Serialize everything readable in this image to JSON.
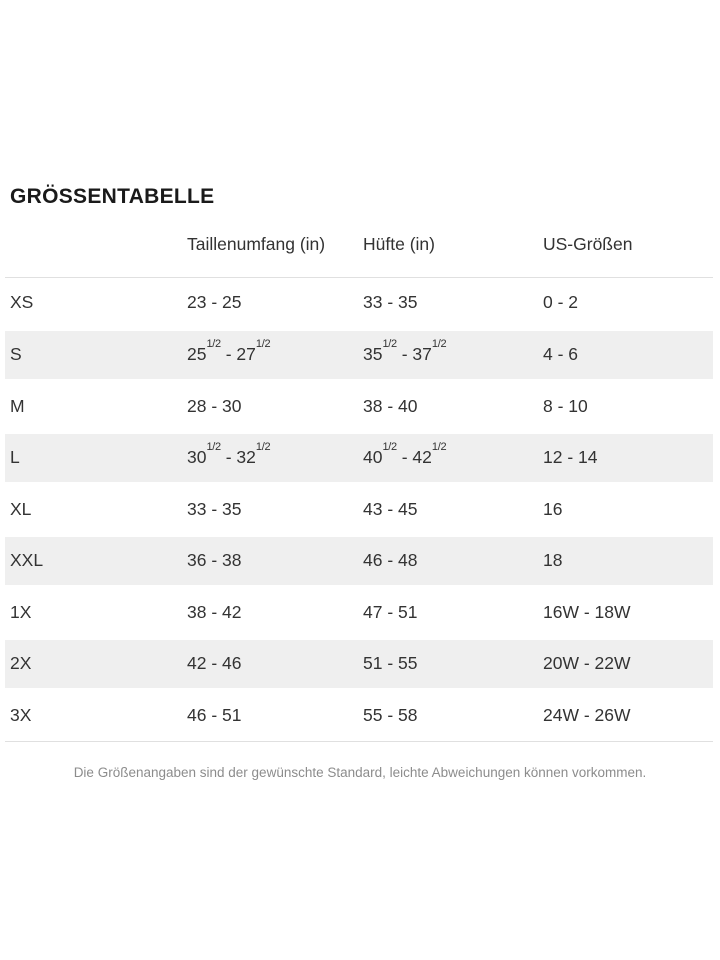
{
  "page": {
    "title": "GRÖSSENTABELLE",
    "footnote": "Die Größenangaben sind der gewünschte Standard, leichte Abweichungen können vorkommen."
  },
  "table": {
    "columns": [
      "",
      "Taillenumfang (in)",
      "Hüfte (in)",
      "US-Größen"
    ],
    "rows": [
      {
        "size": "XS",
        "waist": "23 - 25",
        "hip": "33 - 35",
        "us": "0 - 2"
      },
      {
        "size": "S",
        "waist": "25{1/2} - 27{1/2}",
        "hip": "35{1/2} - 37{1/2}",
        "us": "4 - 6"
      },
      {
        "size": "M",
        "waist": "28 - 30",
        "hip": "38 - 40",
        "us": "8 - 10"
      },
      {
        "size": "L",
        "waist": "30{1/2} - 32{1/2}",
        "hip": "40{1/2} - 42{1/2}",
        "us": "12 - 14"
      },
      {
        "size": "XL",
        "waist": "33 - 35",
        "hip": "43 - 45",
        "us": "16"
      },
      {
        "size": "XXL",
        "waist": "36 - 38",
        "hip": "46 - 48",
        "us": "18"
      },
      {
        "size": "1X",
        "waist": "38 - 42",
        "hip": "47 - 51",
        "us": "16W - 18W"
      },
      {
        "size": "2X",
        "waist": "42 - 46",
        "hip": "51 - 55",
        "us": "20W - 22W"
      },
      {
        "size": "3X",
        "waist": "46 - 51",
        "hip": "55 - 58",
        "us": "24W - 26W"
      }
    ]
  },
  "colors": {
    "title": "#1a1a1a",
    "text": "#333333",
    "stripe": "#efefef",
    "divider": "#e0e0e0",
    "muted": "#8c8c8c"
  }
}
